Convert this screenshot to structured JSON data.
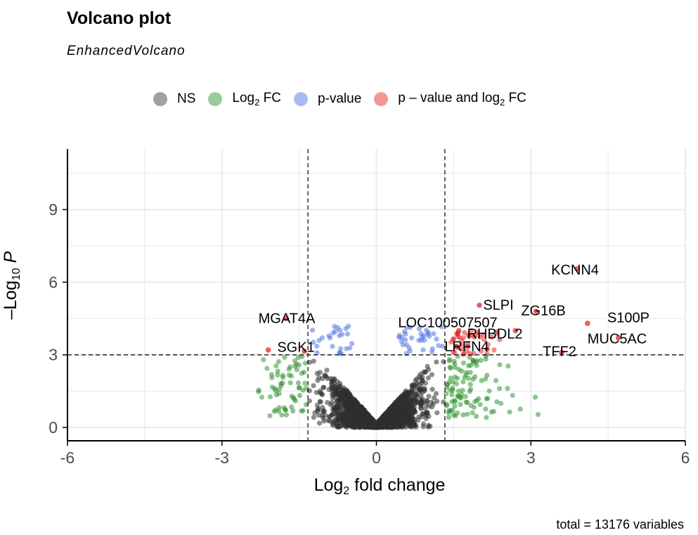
{
  "title": "Volcano plot",
  "subtitle": "EnhancedVolcano",
  "caption": "total = 13176 variables",
  "legend": [
    {
      "label": "NS",
      "color": "#2f2f2f"
    },
    {
      "label_main": "Log",
      "label_sub": "2",
      "label_after": " FC",
      "color": "#228b22"
    },
    {
      "label": "p-value",
      "color": "#4169e1"
    },
    {
      "label_main": "p – value and log",
      "label_sub": "2",
      "label_after": " FC",
      "color": "#e31a1c"
    }
  ],
  "axes": {
    "x_title_main": "Log",
    "x_title_sub": "2",
    "x_title_after": " fold change",
    "y_title_main": "–Log",
    "y_title_sub": "10",
    "y_title_after": " P"
  },
  "chart_data": {
    "type": "scatter",
    "title": "Volcano plot",
    "subtitle": "EnhancedVolcano",
    "xlim": [
      -6,
      6
    ],
    "ylim": [
      0,
      11.5
    ],
    "x_ticks": [
      "-6",
      "-3",
      "0",
      "3",
      "6"
    ],
    "y_ticks": [
      "0",
      "3",
      "6",
      "9"
    ],
    "fc_cutoff": 1.33,
    "p_cutoff_log10": 3,
    "grid": true,
    "legend_position": "top",
    "colors": {
      "NS": "#2f2f2f",
      "FC": "#228b22",
      "P": "#4169e1",
      "FC_P": "#e31a1c"
    },
    "labeled_points": [
      {
        "label": "KCNN4",
        "x": 3.9,
        "y": 6.55
      },
      {
        "label": "S100P",
        "x": 4.1,
        "y": 4.3
      },
      {
        "label": "MUC5AC",
        "x": 4.7,
        "y": 3.7
      },
      {
        "label": "ZG16B",
        "x": 3.1,
        "y": 4.8
      },
      {
        "label": "SLPI",
        "x": 2.0,
        "y": 5.05
      },
      {
        "label": "TFF2",
        "x": 3.6,
        "y": 3.1
      },
      {
        "label": "RHBDL2",
        "x": 2.7,
        "y": 4.0
      },
      {
        "label": "LOC100507507",
        "x": 1.6,
        "y": 4.0
      },
      {
        "label": "LRFN4",
        "x": 1.55,
        "y": 3.35
      },
      {
        "label": "MGAT4A",
        "x": -1.75,
        "y": 4.5
      },
      {
        "label": "SGK1",
        "x": -1.4,
        "y": 3.15
      }
    ],
    "labeled_points_extra": [
      {
        "x": -2.1,
        "y": 3.2
      }
    ]
  }
}
